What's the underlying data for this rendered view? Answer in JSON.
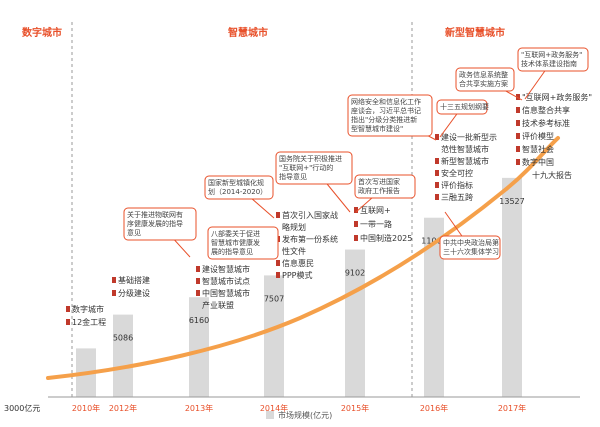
{
  "chart_data": {
    "type": "bar",
    "title": "",
    "xlabel": "",
    "ylabel": "",
    "categories": [
      "2010年",
      "2012年",
      "2013年",
      "2014年",
      "2015年",
      "2016年",
      "2017年"
    ],
    "values": [
      3000,
      5086,
      6160,
      7507,
      9102,
      11066,
      13527
    ],
    "value_labels": [
      "",
      "5086",
      "6160",
      "7507",
      "9102",
      "11066",
      "13527"
    ],
    "base_label": "3000亿元",
    "legend": "市场规模(亿元)",
    "ylim": [
      0,
      16500
    ],
    "trend_line": true,
    "stages": [
      "数字城市",
      "智慧城市",
      "新型智慧城市"
    ],
    "colors": {
      "accent": "#e8502a",
      "bar": "#d9d9d9",
      "trend": "#f5a04a",
      "callout": "#e8502a",
      "bullet": "#c0392b",
      "divider": "#999999"
    },
    "bullets": [
      {
        "year": "2010年",
        "items": [
          "数字城市",
          "12金工程"
        ]
      },
      {
        "year": "2012年",
        "items": [
          "基础搭建",
          "分级建设"
        ]
      },
      {
        "year": "2013年",
        "items": [
          "建设智慧城市",
          "智慧城市试点",
          "中国智慧城市",
          "产业联盟"
        ]
      },
      {
        "year": "2014年",
        "items": [
          "首次引入国家战",
          "略规划",
          "发布第一份系统",
          "性文件",
          "信息惠民",
          "PPP模式"
        ]
      },
      {
        "year": "2015年",
        "items": [
          "互联网+",
          "一带一路",
          "中国制造2025"
        ]
      },
      {
        "year": "2016年",
        "items": [
          "建设一批新型示",
          "范性智慧城市",
          "新型智慧城市",
          "安全可控",
          "评价指标",
          "三融五跨"
        ]
      },
      {
        "year": "2017年",
        "items": [
          "\"互联网+政务服务\"",
          "信息整合共享",
          "技术参考标准",
          "评价模型",
          "智慧社会",
          "数字中国",
          "十九大报告"
        ]
      }
    ],
    "callouts": [
      [
        "关于推进物联网有",
        "序健康发展的指导",
        "意见"
      ],
      [
        "国家新型城镇化规",
        "划（2014-2020）"
      ],
      [
        "八部委关于促进",
        "智慧城市健康发",
        "展的指导意见"
      ],
      [
        "国务院关于积极推进",
        "\"互联网+\"行动的",
        "指导意见"
      ],
      [
        "首次写进国家",
        "政府工作报告"
      ],
      [
        "网络安全和信息化工作",
        "座谈会，习近平总书记",
        "指出\"分级分类推进新",
        "型智慧城市建设\""
      ],
      [
        "十三五规划纲要"
      ],
      [
        "中共中央政治局第",
        "三十六次集体学习"
      ],
      [
        "政务信息系统整",
        "合共享实施方案"
      ],
      [
        "\"互联网+政务服务\"",
        "技术体系建设指南"
      ]
    ]
  }
}
